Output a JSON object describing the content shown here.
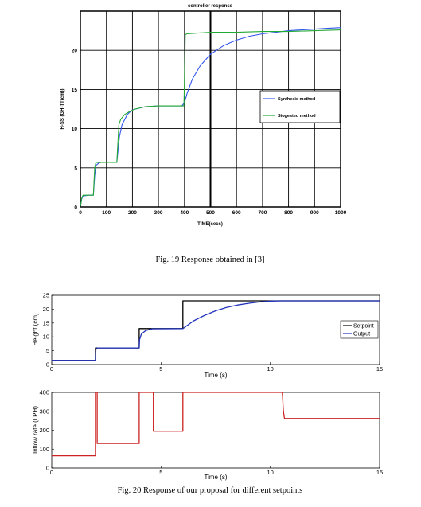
{
  "fig19": {
    "caption": "Fig. 19 Response obtained in [3]",
    "chart_data": {
      "type": "line",
      "title": "controller response",
      "xlabel": "TIME(secs)",
      "ylabel": "H-SS (GH-TT(cm))",
      "xlim": [
        0,
        1000
      ],
      "ylim": [
        0,
        25
      ],
      "xticks": [
        "0",
        "100",
        "200",
        "300",
        "400",
        "500",
        "600",
        "700",
        "800",
        "900",
        "1000"
      ],
      "yticks": [
        "0",
        "5",
        "10",
        "15",
        "20"
      ],
      "grid": true,
      "legend_position": "right",
      "series": [
        {
          "name": "Synthesis method",
          "color": "#3355ee",
          "x": [
            0,
            5,
            10,
            30,
            50,
            55,
            60,
            70,
            80,
            100,
            140,
            150,
            160,
            180,
            200,
            250,
            300,
            350,
            390,
            400,
            410,
            430,
            460,
            500,
            550,
            600,
            650,
            700,
            750,
            800,
            850,
            900,
            950,
            1000
          ],
          "y": [
            0,
            1.0,
            1.4,
            1.5,
            1.5,
            4.0,
            5.3,
            5.6,
            5.7,
            5.7,
            5.7,
            9.0,
            10.5,
            11.8,
            12.4,
            12.8,
            12.9,
            12.9,
            12.9,
            13.3,
            14.5,
            16.3,
            18.0,
            19.5,
            20.6,
            21.3,
            21.8,
            22.1,
            22.3,
            22.5,
            22.6,
            22.7,
            22.8,
            22.9
          ]
        },
        {
          "name": "Siogested method",
          "color": "#22aa33",
          "x": [
            0,
            5,
            10,
            30,
            50,
            55,
            60,
            70,
            100,
            140,
            148,
            155,
            170,
            190,
            210,
            250,
            300,
            350,
            398,
            400,
            403,
            410,
            450,
            500,
            600,
            700,
            800,
            900,
            1000
          ],
          "y": [
            0,
            1.1,
            1.5,
            1.5,
            1.5,
            5.0,
            5.7,
            5.7,
            5.7,
            5.7,
            10.5,
            11.2,
            11.8,
            12.2,
            12.5,
            12.8,
            12.9,
            12.9,
            12.9,
            16.0,
            22.0,
            22.1,
            22.2,
            22.3,
            22.3,
            22.4,
            22.4,
            22.5,
            22.6
          ]
        }
      ]
    }
  },
  "fig20": {
    "caption": "Fig. 20 Response of our proposal for different setpoints",
    "chart_data": [
      {
        "type": "line",
        "xlabel": "Time (s)",
        "ylabel": "Height (cm)",
        "xlim": [
          0,
          15
        ],
        "ylim": [
          0,
          25
        ],
        "xticks": [
          "0",
          "5",
          "10",
          "15"
        ],
        "yticks": [
          "0",
          "5",
          "10",
          "15",
          "20",
          "25"
        ],
        "grid": false,
        "legend_position": "right",
        "series": [
          {
            "name": "Setpoint",
            "color": "#000000",
            "x": [
              0,
              2,
              2,
              4,
              4,
              6,
              6,
              15
            ],
            "y": [
              1.5,
              1.5,
              6,
              6,
              13,
              13,
              23,
              23
            ]
          },
          {
            "name": "Output",
            "color": "#2233bb",
            "x": [
              0,
              2,
              2.02,
              2.1,
              4,
              4.02,
              4.1,
              4.3,
              4.6,
              6,
              6.5,
              7,
              7.5,
              8,
              8.5,
              9,
              9.5,
              10,
              10.5,
              15
            ],
            "y": [
              1.5,
              1.5,
              5.5,
              6,
              6,
              9,
              11,
              12.3,
              12.9,
              13,
              15.8,
              17.8,
              19.4,
              20.6,
              21.5,
              22.1,
              22.6,
              22.9,
              23,
              23
            ]
          }
        ]
      },
      {
        "type": "line",
        "xlabel": "Time (s)",
        "ylabel": "Inflow rate (LPH)",
        "xlim": [
          0,
          15
        ],
        "ylim": [
          0,
          400
        ],
        "xticks": [
          "0",
          "5",
          "10",
          "15"
        ],
        "yticks": [
          "0",
          "100",
          "200",
          "300",
          "400"
        ],
        "grid": false,
        "series": [
          {
            "color": "#cc2222",
            "x": [
              0,
              2,
              2,
              2.08,
              2.08,
              4,
              4,
              4.08,
              4.08,
              4.65,
              4.65,
              6,
              6,
              10.55,
              10.6,
              10.65,
              15
            ],
            "y": [
              65,
              65,
              400,
              400,
              130,
              130,
              400,
              400,
              400,
              400,
              195,
              195,
              400,
              400,
              300,
              262,
              262
            ]
          }
        ]
      }
    ]
  }
}
